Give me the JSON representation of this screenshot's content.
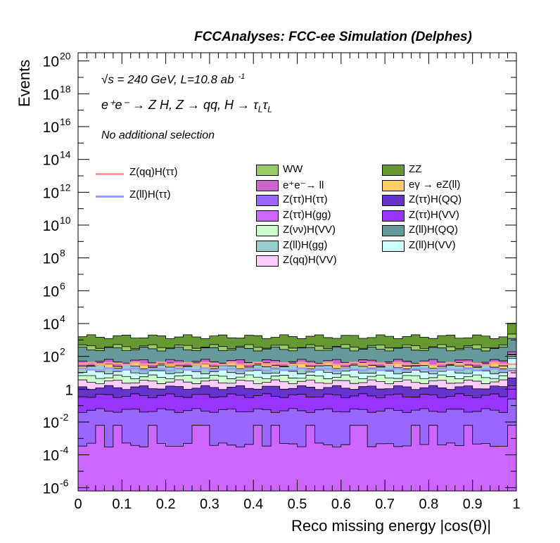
{
  "header": {
    "title": "FCCAnalyses: FCC-ee Simulation (Delphes)"
  },
  "annotations": {
    "energy": "√s = 240 GeV, L=10.8 ab",
    "energy_exp": "-1",
    "process": "e⁺e⁻ → Z H, Z → qq, H → τ",
    "process_sub1": "L",
    "process_tau2": "τ",
    "process_sub2": "L",
    "selection": "No additional selection"
  },
  "chart_data": {
    "type": "histogram",
    "stacked": true,
    "xlabel": "Reco missing energy |cos(θ)|",
    "ylabel": "Events",
    "xlim": [
      0,
      1
    ],
    "ylim_log10": [
      -6.2,
      20.5
    ],
    "log_y": true,
    "x_ticks": [
      "0",
      "0.1",
      "0.2",
      "0.3",
      "0.4",
      "0.5",
      "0.6",
      "0.7",
      "0.8",
      "0.9",
      "1"
    ],
    "y_ticks": [
      {
        "base": "10",
        "exp": "20",
        "v": 20
      },
      {
        "base": "10",
        "exp": "18",
        "v": 18
      },
      {
        "base": "10",
        "exp": "16",
        "v": 16
      },
      {
        "base": "10",
        "exp": "14",
        "v": 14
      },
      {
        "base": "10",
        "exp": "12",
        "v": 12
      },
      {
        "base": "10",
        "exp": "10",
        "v": 10
      },
      {
        "base": "10",
        "exp": "8",
        "v": 8
      },
      {
        "base": "10",
        "exp": "6",
        "v": 6
      },
      {
        "base": "10",
        "exp": "4",
        "v": 4
      },
      {
        "base": "10",
        "exp": "2",
        "v": 2
      },
      {
        "base": "1",
        "exp": "",
        "v": 0
      },
      {
        "base": "10",
        "exp": "-2",
        "v": -2
      },
      {
        "base": "10",
        "exp": "-4",
        "v": -4
      },
      {
        "base": "10",
        "exp": "-6",
        "v": -6
      }
    ],
    "bins": 50,
    "stack_top_log10": [
      {
        "name": "Z(ττ)H(gg)",
        "color": "#cc66ff",
        "value": -3.4
      },
      {
        "name": "Z(ττ)H(ττ)",
        "color": "#9966ff",
        "value": -1.3
      },
      {
        "name": "Z(ττ)H(VV)",
        "color": "#9933ff",
        "value": -0.4
      },
      {
        "name": "Z(ττ)H(QQ)",
        "color": "#6633cc",
        "value": 0.1
      },
      {
        "name": "Z(qq)H(VV)",
        "color": "#ffccff",
        "value": 0.45
      },
      {
        "name": "Z(νν)H(VV)",
        "color": "#ccffcc",
        "value": 0.75
      },
      {
        "name": "Z(ll)H(VV)",
        "color": "#ccffff",
        "value": 1.05
      },
      {
        "name": "Z(ll)H(gg)",
        "color": "#99cccc",
        "value": 1.35
      },
      {
        "name": "eγ → eZ(ll)",
        "color": "#ffcc66",
        "value": 1.5
      },
      {
        "name": "e⁺e⁻→ ll",
        "color": "#cc66cc",
        "value": 1.7
      },
      {
        "name": "Z(ll)H(QQ)",
        "color": "#669999",
        "value": 2.45
      },
      {
        "name": "WW",
        "color": "#99cc66",
        "value": 2.6
      },
      {
        "name": "ZZ",
        "color": "#669933",
        "value": 3.2
      }
    ],
    "overlay_lines": [
      {
        "name": "Z(qq)H(ττ)",
        "color": "#ff9999",
        "value": 1.55
      },
      {
        "name": "Z(ll)H(ττ)",
        "color": "#9999ff",
        "value": 1.2
      }
    ],
    "legend": {
      "lines": [
        "Z(qq)H(ττ)",
        "Z(ll)H(ττ)"
      ],
      "col1": [
        {
          "label": "WW",
          "color": "#99cc66"
        },
        {
          "label": "e⁺e⁻→ ll",
          "color": "#cc66cc"
        },
        {
          "label": "Z(ττ)H(ττ)",
          "color": "#9966ff"
        },
        {
          "label": "Z(ττ)H(gg)",
          "color": "#cc66ff"
        },
        {
          "label": "Z(νν)H(VV)",
          "color": "#ccffcc"
        },
        {
          "label": "Z(ll)H(gg)",
          "color": "#99cccc"
        },
        {
          "label": "Z(qq)H(VV)",
          "color": "#ffccff"
        }
      ],
      "col2": [
        {
          "label": "ZZ",
          "color": "#669933"
        },
        {
          "label": "eγ → eZ(ll)",
          "color": "#ffcc66"
        },
        {
          "label": "Z(ττ)H(QQ)",
          "color": "#6633cc"
        },
        {
          "label": "Z(ττ)H(VV)",
          "color": "#9933ff"
        },
        {
          "label": "Z(ll)H(QQ)",
          "color": "#669999"
        },
        {
          "label": "Z(ll)H(VV)",
          "color": "#ccffff"
        }
      ]
    }
  }
}
